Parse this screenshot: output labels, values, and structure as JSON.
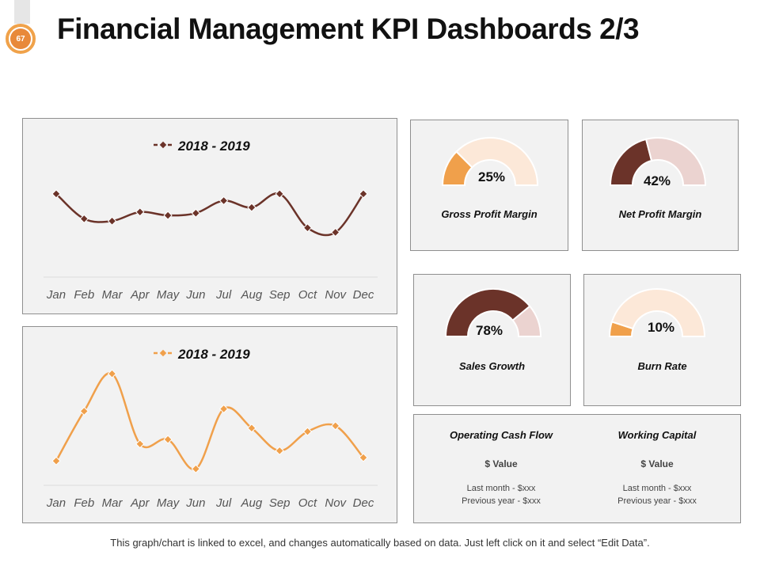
{
  "slide": {
    "number": "67",
    "title": "Financial Management KPI Dashboards 2/3",
    "footer": "This graph/chart is linked to excel, and changes automatically  based on data. Just left click on it and select “Edit Data”."
  },
  "colors": {
    "dark_brown": "#6b3329",
    "orange": "#f0a04b",
    "light_peach": "#fce8d8",
    "light_pink": "#ebd3d0",
    "panel_bg": "#f2f2f2"
  },
  "chart_data": [
    {
      "type": "line",
      "title": "2018 - 2019",
      "legend": "2018 - 2019",
      "categories": [
        "Jan",
        "Feb",
        "Mar",
        "Apr",
        "May",
        "Jun",
        "Jul",
        "Aug",
        "Sep",
        "Oct",
        "Nov",
        "Dec"
      ],
      "values": [
        7.0,
        4.8,
        4.6,
        5.4,
        5.1,
        5.3,
        6.4,
        5.8,
        7.0,
        4.0,
        3.6,
        7.0
      ],
      "ylim": [
        0,
        10
      ],
      "grid": false,
      "color": "#6b3329"
    },
    {
      "type": "line",
      "title": "2018 - 2019",
      "legend": "2018 - 2019",
      "categories": [
        "Jan",
        "Feb",
        "Mar",
        "Apr",
        "May",
        "Jun",
        "Jul",
        "Aug",
        "Sep",
        "Oct",
        "Nov",
        "Dec"
      ],
      "values": [
        1.8,
        6.2,
        9.5,
        3.3,
        3.7,
        1.1,
        6.4,
        4.7,
        2.7,
        4.4,
        4.9,
        2.1
      ],
      "ylim": [
        0,
        10
      ],
      "grid": false,
      "color": "#f0a04b"
    }
  ],
  "gauges": [
    {
      "label": "Gross Profit Margin",
      "value_text": "25%",
      "value": 25,
      "fill": "#f0a04b",
      "rest": "#fce8d8"
    },
    {
      "label": "Net Profit Margin",
      "value_text": "42%",
      "value": 42,
      "fill": "#6b3329",
      "rest": "#ebd3d0"
    },
    {
      "label": "Sales Growth",
      "value_text": "78%",
      "value": 78,
      "fill": "#6b3329",
      "rest": "#ebd3d0"
    },
    {
      "label": "Burn Rate",
      "value_text": "10%",
      "value": 10,
      "fill": "#f0a04b",
      "rest": "#fce8d8"
    }
  ],
  "cash": [
    {
      "title": "Operating Cash Flow",
      "value": "$ Value",
      "last_month": "Last month - $xxx",
      "previous_year": "Previous  year - $xxx"
    },
    {
      "title": "Working Capital",
      "value": "$ Value",
      "last_month": "Last month - $xxx",
      "previous_year": "Previous  year - $xxx"
    }
  ]
}
